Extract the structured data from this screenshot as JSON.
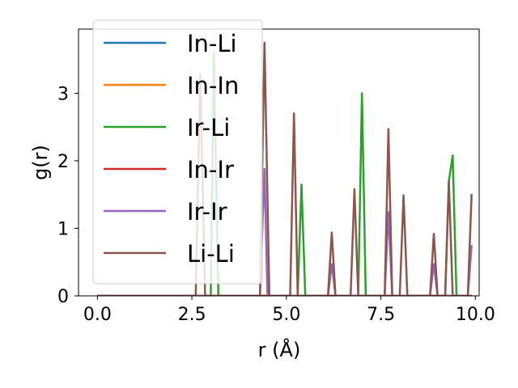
{
  "chart_data": {
    "type": "line",
    "xlabel": "r (Å)",
    "ylabel": "g(r)",
    "xlim": [
      -0.5,
      10.1
    ],
    "ylim": [
      0,
      3.95
    ],
    "xticks": [
      0.0,
      2.5,
      5.0,
      7.5,
      10.0
    ],
    "xtick_labels": [
      "0.0",
      "2.5",
      "5.0",
      "7.5",
      "10.0"
    ],
    "yticks": [
      0,
      1,
      2,
      3
    ],
    "ytick_labels": [
      "0",
      "1",
      "2",
      "3"
    ],
    "grid": false,
    "legend_position": "upper-left",
    "series": [
      {
        "name": "In-Li",
        "color": "#1f77b4",
        "x": [
          0.0,
          9.9
        ],
        "y": [
          0,
          0
        ]
      },
      {
        "name": "In-In",
        "color": "#ff7f0e",
        "x": [
          0.0,
          9.9
        ],
        "y": [
          0,
          0
        ]
      },
      {
        "name": "Ir-Li",
        "color": "#2ca02c",
        "x": [
          0.0,
          3.0,
          3.08,
          3.2,
          3.3,
          5.3,
          5.4,
          5.5,
          6.9,
          7.0,
          7.1,
          9.2,
          9.3,
          9.4,
          9.5,
          9.6,
          9.9
        ],
        "y": [
          0,
          0,
          3.6,
          0,
          0,
          0,
          1.65,
          0,
          0,
          3.0,
          0,
          0,
          1.7,
          2.08,
          0,
          0,
          0
        ]
      },
      {
        "name": "In-Ir",
        "color": "#d62728",
        "x": [
          0.0,
          9.9
        ],
        "y": [
          0,
          0
        ]
      },
      {
        "name": "Ir-Ir",
        "color": "#9467bd",
        "x": [
          0.0,
          4.3,
          4.42,
          4.5,
          6.1,
          6.2,
          6.3,
          7.6,
          7.7,
          7.8,
          8.8,
          8.9,
          9.0,
          9.8,
          9.9
        ],
        "y": [
          0,
          0,
          1.88,
          0,
          0,
          0.47,
          0,
          0,
          1.24,
          0,
          0,
          0.47,
          0,
          0,
          0.75
        ]
      },
      {
        "name": "Li-Li",
        "color": "#8c564b",
        "x": [
          0.0,
          2.6,
          2.72,
          2.85,
          4.3,
          4.42,
          4.55,
          5.1,
          5.2,
          5.3,
          6.1,
          6.2,
          6.3,
          6.7,
          6.8,
          6.9,
          7.6,
          7.7,
          7.8,
          8.0,
          8.1,
          8.2,
          8.8,
          8.9,
          9.0,
          9.2,
          9.3,
          9.4,
          9.8,
          9.9
        ],
        "y": [
          0,
          0,
          3.28,
          0,
          0,
          3.75,
          0,
          0,
          2.7,
          0,
          0,
          0.94,
          0,
          0,
          1.58,
          0,
          0,
          2.47,
          0,
          0,
          1.49,
          0,
          0,
          0.92,
          0,
          0,
          1.7,
          0,
          0,
          1.51
        ]
      }
    ]
  }
}
